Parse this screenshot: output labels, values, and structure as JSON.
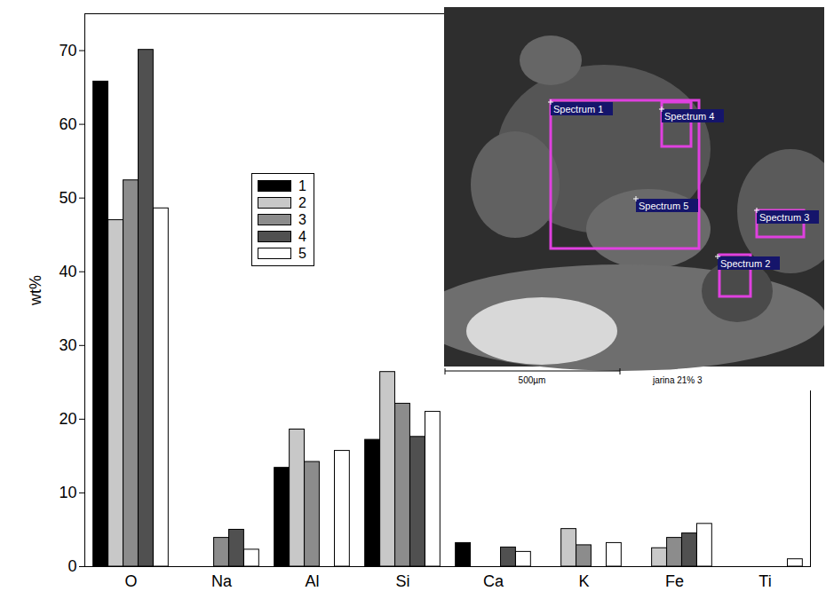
{
  "chart_data": {
    "type": "bar",
    "ylabel": "wt%",
    "categories": [
      "O",
      "Na",
      "Al",
      "Si",
      "Ca",
      "K",
      "Fe",
      "Ti"
    ],
    "series": [
      {
        "name": "1",
        "color": "#000000",
        "values": [
          65.8,
          0,
          13.4,
          17.2,
          3.2,
          0,
          0,
          0
        ]
      },
      {
        "name": "2",
        "color": "#c8c8c8",
        "values": [
          47.0,
          0,
          18.6,
          26.4,
          0,
          5.1,
          2.5,
          0
        ]
      },
      {
        "name": "3",
        "color": "#8c8c8c",
        "values": [
          52.4,
          3.9,
          14.2,
          22.1,
          0,
          2.9,
          3.9,
          0
        ]
      },
      {
        "name": "4",
        "color": "#505050",
        "values": [
          70.1,
          5.0,
          0,
          17.6,
          2.6,
          0,
          4.5,
          0
        ]
      },
      {
        "name": "5",
        "color": "#ffffff",
        "values": [
          48.6,
          2.3,
          15.7,
          21.0,
          2.0,
          3.2,
          5.8,
          1.0
        ]
      }
    ],
    "ylim": [
      0,
      75
    ],
    "yticks": [
      0,
      10,
      20,
      30,
      40,
      50,
      60,
      70
    ],
    "legend": "center",
    "grid": false,
    "annotations": [
      "Spectrum 1",
      "Spectrum 4",
      "Spectrum 5",
      "Spectrum 3",
      "Spectrum 2",
      "500µm",
      "jarina 21% 3"
    ]
  }
}
